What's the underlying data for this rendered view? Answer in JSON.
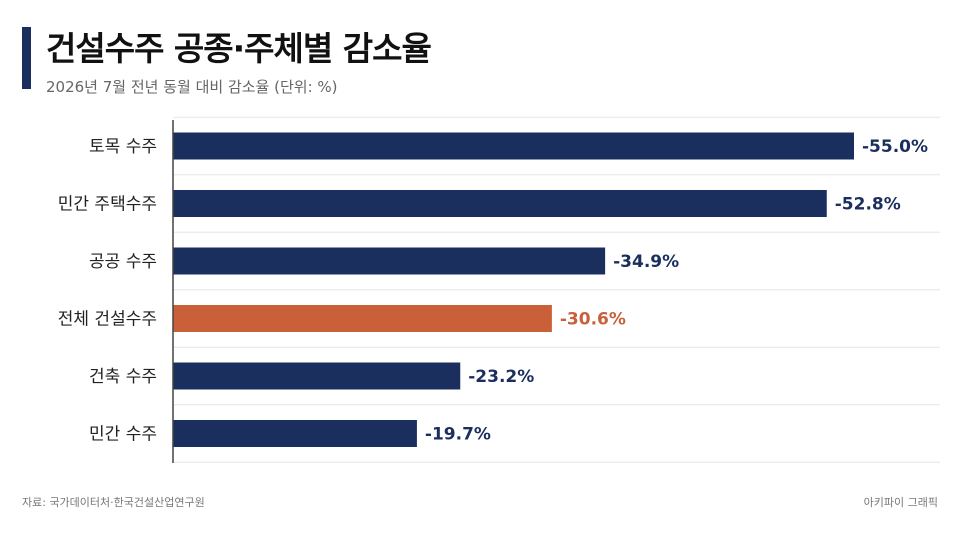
{
  "header": {
    "title": "건설수주 공종·주체별 감소율",
    "subtitle": "2026년 7월 전년 동월 대비 감소율 (단위: %)"
  },
  "footer": {
    "source": "자료: 국가데이터처·한국건설산업연구원",
    "credit": "아키파이 그래픽"
  },
  "colors": {
    "bar": "#1b2f5e",
    "highlight": "#c9603a",
    "gridline": "#e6e6e6",
    "axis": "#444444"
  },
  "chart_data": {
    "type": "bar",
    "orientation": "horizontal",
    "title": "건설수주 공종·주체별 감소율",
    "subtitle": "2026년 7월 전년 동월 대비 감소율 (단위: %)",
    "categories": [
      "토목 수주",
      "민간 주택수주",
      "공공 수주",
      "전체 건설수주",
      "건축 수주",
      "민간 수주"
    ],
    "values": [
      -55.0,
      -52.8,
      -34.9,
      -30.6,
      -23.2,
      -19.7
    ],
    "value_labels": [
      "-55.0%",
      "-52.8%",
      "-34.9%",
      "-30.6%",
      "-23.2%",
      "-19.7%"
    ],
    "highlight_index": 3,
    "xlim": [
      0,
      55
    ],
    "grid": true,
    "legend": "none"
  }
}
